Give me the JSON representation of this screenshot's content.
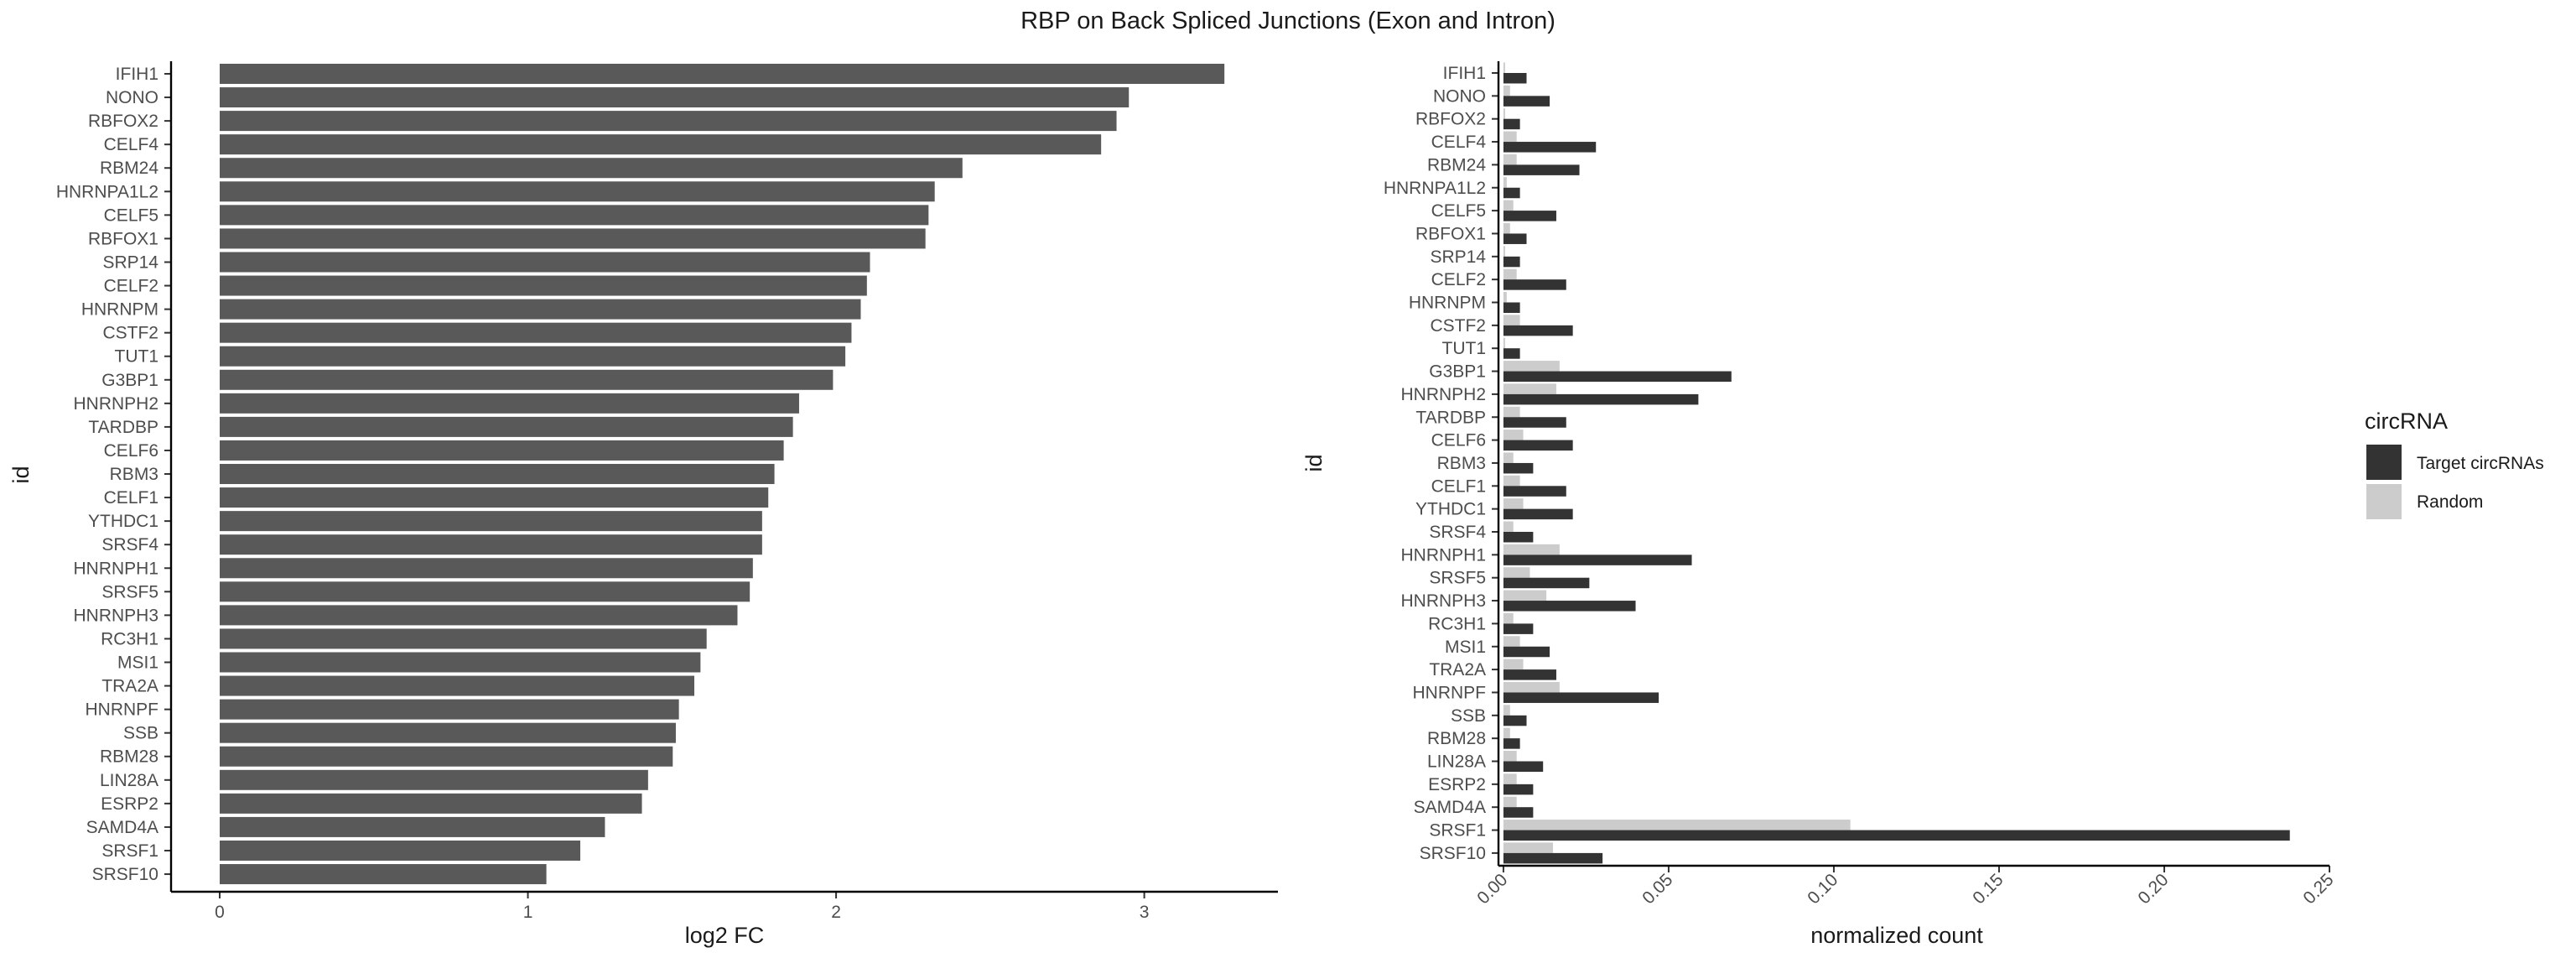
{
  "title": "RBP on Back Spliced Junctions (Exon and Intron)",
  "colors": {
    "left_bar": "#595959",
    "target": "#333333",
    "random": "#cccccc",
    "axis": "#000000"
  },
  "chart_data": [
    {
      "type": "bar",
      "orientation": "horizontal",
      "xlabel": "log2 FC",
      "ylabel": "id",
      "xlim": [
        0,
        3.45
      ],
      "xticks": [
        "0",
        "1",
        "2",
        "3"
      ],
      "grid": false,
      "categories": [
        "IFIH1",
        "NONO",
        "RBFOX2",
        "CELF4",
        "RBM24",
        "HNRNPA1L2",
        "CELF5",
        "RBFOX1",
        "SRP14",
        "CELF2",
        "HNRNPM",
        "CSTF2",
        "TUT1",
        "G3BP1",
        "HNRNPH2",
        "TARDBP",
        "CELF6",
        "RBM3",
        "CELF1",
        "YTHDC1",
        "SRSF4",
        "HNRNPH1",
        "SRSF5",
        "HNRNPH3",
        "RC3H1",
        "MSI1",
        "TRA2A",
        "HNRNPF",
        "SSB",
        "RBM28",
        "LIN28A",
        "ESRP2",
        "SAMD4A",
        "SRSF1",
        "SRSF10"
      ],
      "values": [
        3.26,
        2.95,
        2.91,
        2.86,
        2.41,
        2.32,
        2.3,
        2.29,
        2.11,
        2.1,
        2.08,
        2.05,
        2.03,
        1.99,
        1.88,
        1.86,
        1.83,
        1.8,
        1.78,
        1.76,
        1.76,
        1.73,
        1.72,
        1.68,
        1.58,
        1.56,
        1.54,
        1.49,
        1.48,
        1.47,
        1.39,
        1.37,
        1.25,
        1.17,
        1.06
      ]
    },
    {
      "type": "bar",
      "orientation": "horizontal",
      "xlabel": "normalized count",
      "ylabel": "id",
      "xlim": [
        -0.0015,
        0.25
      ],
      "xticks": [
        "0.00",
        "0.05",
        "0.10",
        "0.15",
        "0.20",
        "0.25"
      ],
      "grid": false,
      "categories": [
        "IFIH1",
        "NONO",
        "RBFOX2",
        "CELF4",
        "RBM24",
        "HNRNPA1L2",
        "CELF5",
        "RBFOX1",
        "SRP14",
        "CELF2",
        "HNRNPM",
        "CSTF2",
        "TUT1",
        "G3BP1",
        "HNRNPH2",
        "TARDBP",
        "CELF6",
        "RBM3",
        "CELF1",
        "YTHDC1",
        "SRSF4",
        "HNRNPH1",
        "SRSF5",
        "HNRNPH3",
        "RC3H1",
        "MSI1",
        "TRA2A",
        "HNRNPF",
        "SSB",
        "RBM28",
        "LIN28A",
        "ESRP2",
        "SAMD4A",
        "SRSF1",
        "SRSF10"
      ],
      "legend": {
        "title": "circRNA",
        "position": "right"
      },
      "series": [
        {
          "name": "Target circRNAs",
          "values": [
            0.007,
            0.014,
            0.005,
            0.028,
            0.023,
            0.005,
            0.016,
            0.007,
            0.005,
            0.019,
            0.005,
            0.021,
            0.005,
            0.069,
            0.059,
            0.019,
            0.021,
            0.009,
            0.019,
            0.021,
            0.009,
            0.057,
            0.026,
            0.04,
            0.009,
            0.014,
            0.016,
            0.047,
            0.007,
            0.005,
            0.012,
            0.009,
            0.009,
            0.238,
            0.03
          ]
        },
        {
          "name": "Random",
          "values": [
            0.0005,
            0.002,
            0.0005,
            0.004,
            0.004,
            0.001,
            0.003,
            0.002,
            0.0005,
            0.004,
            0.001,
            0.005,
            0.0005,
            0.017,
            0.016,
            0.005,
            0.006,
            0.003,
            0.005,
            0.006,
            0.003,
            0.017,
            0.008,
            0.013,
            0.003,
            0.005,
            0.006,
            0.017,
            0.002,
            0.002,
            0.004,
            0.004,
            0.004,
            0.105,
            0.015
          ]
        }
      ]
    }
  ]
}
